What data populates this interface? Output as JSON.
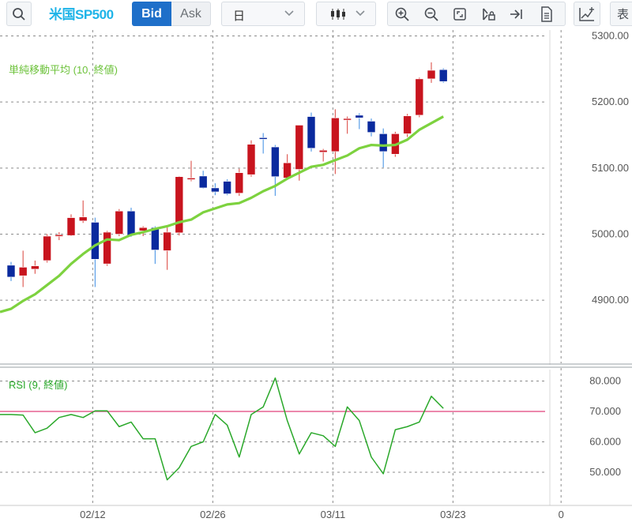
{
  "toolbar": {
    "symbol": "米国SP500",
    "bid_label": "Bid",
    "ask_label": "Ask",
    "timeframe_selected": "日",
    "chart_type_icon": "candlestick-icon",
    "table_label": "表"
  },
  "colors": {
    "up": "#c8141e",
    "down": "#0a2a9e",
    "ma": "#7dd23f",
    "rsi": "#2aa82a",
    "rsi_ref": "#e0407a",
    "ma_label": "#6cc23a"
  },
  "chart_data": [
    {
      "type": "candlestick",
      "legend": "単純移動平均 (10, 終値)",
      "yticks": [
        "5300.00",
        "5200.00",
        "5100.00",
        "5000.00",
        "4900.00"
      ],
      "ylim": [
        4830,
        5310
      ],
      "xticks": [
        {
          "label": "02/12",
          "index": 7
        },
        {
          "label": "02/26",
          "index": 17
        },
        {
          "label": "03/11",
          "index": 27
        },
        {
          "label": "03/23",
          "index": 37
        },
        {
          "label": "0",
          "index": 46
        }
      ],
      "candles": [
        {
          "o": 4953,
          "h": 4958,
          "l": 4929,
          "c": 4935
        },
        {
          "o": 4937,
          "h": 4975,
          "l": 4920,
          "c": 4950
        },
        {
          "o": 4947,
          "h": 4960,
          "l": 4940,
          "c": 4952
        },
        {
          "o": 4960,
          "h": 5000,
          "l": 4957,
          "c": 4997
        },
        {
          "o": 4998,
          "h": 5003,
          "l": 4991,
          "c": 4999
        },
        {
          "o": 4998,
          "h": 5030,
          "l": 4997,
          "c": 5025
        },
        {
          "o": 5020,
          "h": 5051,
          "l": 5017,
          "c": 5026
        },
        {
          "o": 5018,
          "h": 5025,
          "l": 4920,
          "c": 4962
        },
        {
          "o": 4955,
          "h": 5005,
          "l": 4952,
          "c": 5003
        },
        {
          "o": 5000,
          "h": 5038,
          "l": 4997,
          "c": 5035
        },
        {
          "o": 5035,
          "h": 5040,
          "l": 4996,
          "c": 4998
        },
        {
          "o": 5005,
          "h": 5012,
          "l": 4997,
          "c": 5010
        },
        {
          "o": 5010,
          "h": 5012,
          "l": 4955,
          "c": 4976
        },
        {
          "o": 4975,
          "h": 5010,
          "l": 4946,
          "c": 5003
        },
        {
          "o": 5002,
          "h": 5088,
          "l": 4998,
          "c": 5087
        },
        {
          "o": 5083,
          "h": 5111,
          "l": 5080,
          "c": 5085
        },
        {
          "o": 5088,
          "h": 5096,
          "l": 5069,
          "c": 5070
        },
        {
          "o": 5070,
          "h": 5077,
          "l": 5059,
          "c": 5064
        },
        {
          "o": 5080,
          "h": 5083,
          "l": 5059,
          "c": 5061
        },
        {
          "o": 5062,
          "h": 5099,
          "l": 5058,
          "c": 5093
        },
        {
          "o": 5090,
          "h": 5142,
          "l": 5087,
          "c": 5136
        },
        {
          "o": 5146,
          "h": 5153,
          "l": 5122,
          "c": 5145
        },
        {
          "o": 5132,
          "h": 5135,
          "l": 5058,
          "c": 5087
        },
        {
          "o": 5085,
          "h": 5121,
          "l": 5082,
          "c": 5108
        },
        {
          "o": 5098,
          "h": 5165,
          "l": 5081,
          "c": 5165
        },
        {
          "o": 5178,
          "h": 5184,
          "l": 5125,
          "c": 5130
        },
        {
          "o": 5124,
          "h": 5129,
          "l": 5110,
          "c": 5127
        },
        {
          "o": 5125,
          "h": 5189,
          "l": 5091,
          "c": 5176
        },
        {
          "o": 5175,
          "h": 5178,
          "l": 5152,
          "c": 5175
        },
        {
          "o": 5180,
          "h": 5183,
          "l": 5159,
          "c": 5176
        },
        {
          "o": 5171,
          "h": 5175,
          "l": 5148,
          "c": 5154
        },
        {
          "o": 5152,
          "h": 5160,
          "l": 5101,
          "c": 5125
        },
        {
          "o": 5121,
          "h": 5155,
          "l": 5117,
          "c": 5152
        },
        {
          "o": 5152,
          "h": 5182,
          "l": 5147,
          "c": 5179
        },
        {
          "o": 5180,
          "h": 5237,
          "l": 5177,
          "c": 5235
        },
        {
          "o": 5235,
          "h": 5260,
          "l": 5229,
          "c": 5248
        },
        {
          "o": 5249,
          "h": 5251,
          "l": 5229,
          "c": 5231
        }
      ],
      "ma": [
        4887,
        4899,
        4909,
        4923,
        4937,
        4955,
        4970,
        4983,
        4992,
        4991,
        4999,
        5003,
        5008,
        5012,
        5018,
        5022,
        5033,
        5039,
        5045,
        5047,
        5055,
        5065,
        5073,
        5084,
        5093,
        5102,
        5105,
        5112,
        5119,
        5130,
        5135,
        5134,
        5135,
        5143,
        5158,
        5168,
        5178
      ]
    },
    {
      "type": "line",
      "legend": "RSI (9, 終値)",
      "yticks": [
        "80.000",
        "70.000",
        "60.000",
        "50.000"
      ],
      "ylim": [
        42,
        86
      ],
      "reference": 70,
      "values": [
        69,
        68.8,
        63,
        64.5,
        68,
        69,
        68,
        70.2,
        70.2,
        65,
        66.5,
        61,
        61,
        47.5,
        51.5,
        58.5,
        60,
        69,
        65.5,
        55,
        69,
        71.5,
        81,
        67,
        56,
        63,
        62,
        58.5,
        71.5,
        67,
        55,
        49.5,
        64,
        65,
        66.5,
        75,
        71
      ]
    }
  ]
}
